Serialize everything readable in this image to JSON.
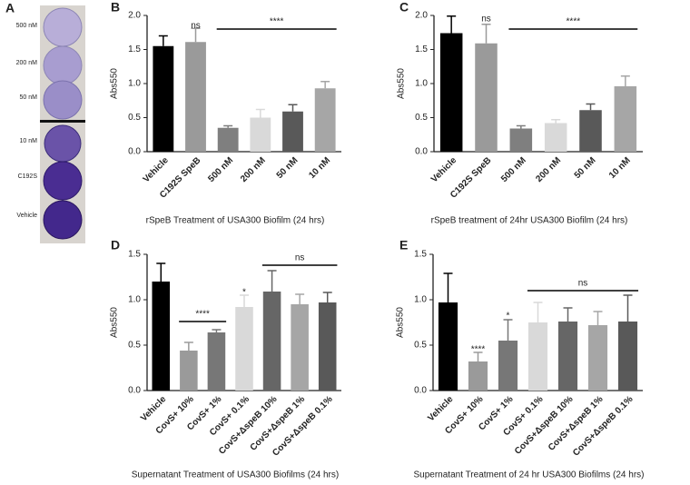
{
  "panel_a": {
    "label": "A",
    "well_labels": [
      "500 nM",
      "200 nM",
      "50 nM",
      "10 nM",
      "C192S",
      "Vehicle"
    ]
  },
  "chart_data": [
    {
      "type": "bar",
      "panel": "B",
      "title": "rSpeB Treatment of USA300 Biofilm (24 hrs)",
      "ylabel": "Abs550",
      "categories": [
        "Vehicle",
        "C192S SpeB",
        "500 nM",
        "200 nM",
        "50 nM",
        "10 nM"
      ],
      "values": [
        1.55,
        1.61,
        0.35,
        0.5,
        0.59,
        0.93
      ],
      "errors": [
        0.15,
        0.2,
        0.03,
        0.12,
        0.1,
        0.1
      ],
      "colors": [
        "#000000",
        "#9a9a9a",
        "#7f7f7f",
        "#d9d9d9",
        "#595959",
        "#a6a6a6"
      ],
      "ylim": [
        0,
        2
      ],
      "yticks": [
        {
          "value": 0,
          "label": "0.0"
        },
        0.5,
        {
          "value": 1,
          "label": "1.0"
        },
        1.5,
        {
          "value": 2,
          "label": "2.0"
        }
      ],
      "annotations": [
        {
          "text": "ns",
          "span": [
            1,
            1
          ],
          "y": 1.85
        },
        {
          "text": "****",
          "span": [
            2,
            5
          ],
          "y": 1.8
        }
      ]
    },
    {
      "type": "bar",
      "panel": "C",
      "title": "rSpeB treatment of 24hr USA300 Biofilm (24 hrs)",
      "ylabel": "Abs550",
      "categories": [
        "Vehicle",
        "C192S SpeB",
        "500 nM",
        "200 nM",
        "50 nM",
        "10 nM"
      ],
      "values": [
        1.74,
        1.59,
        0.34,
        0.42,
        0.61,
        0.96
      ],
      "errors": [
        0.25,
        0.28,
        0.04,
        0.05,
        0.09,
        0.15
      ],
      "colors": [
        "#000000",
        "#9a9a9a",
        "#7f7f7f",
        "#d9d9d9",
        "#595959",
        "#a6a6a6"
      ],
      "ylim": [
        0,
        2
      ],
      "yticks": [
        {
          "value": 0,
          "label": "0.0"
        },
        0.5,
        {
          "value": 1,
          "label": "1.0"
        },
        1.5,
        {
          "value": 2,
          "label": "2.0"
        }
      ],
      "annotations": [
        {
          "text": "ns",
          "span": [
            1,
            1
          ],
          "y": 1.95
        },
        {
          "text": "****",
          "span": [
            2,
            5
          ],
          "y": 1.8
        }
      ]
    },
    {
      "type": "bar",
      "panel": "D",
      "title": "Supernatant Treatment of USA300 Biofilms (24 hrs)",
      "ylabel": "Abs550",
      "categories": [
        "Vehicle",
        "CovS+ 10%",
        "CovS+ 1%",
        "CovS+ 0.1%",
        "CovS+ΔspeB 10%",
        "CovS+ΔspeB 1%",
        "CovS+ΔspeB 0.1%"
      ],
      "values": [
        1.2,
        0.44,
        0.64,
        0.92,
        1.09,
        0.95,
        0.97
      ],
      "errors": [
        0.2,
        0.09,
        0.03,
        0.13,
        0.23,
        0.11,
        0.11
      ],
      "colors": [
        "#000000",
        "#9a9a9a",
        "#777777",
        "#d9d9d9",
        "#666666",
        "#a6a6a6",
        "#595959"
      ],
      "ylim": [
        0,
        1.5
      ],
      "yticks": [
        {
          "value": 0,
          "label": "0.0"
        },
        0.5,
        {
          "value": 1,
          "label": "1.0"
        },
        1.5
      ],
      "annotations": [
        {
          "text": "****",
          "span": [
            1,
            2
          ],
          "y": 0.76
        },
        {
          "text": "*",
          "span": [
            3,
            3
          ],
          "y": 1.08
        },
        {
          "text": "ns",
          "span": [
            4,
            6
          ],
          "y": 1.38
        }
      ]
    },
    {
      "type": "bar",
      "panel": "E",
      "title": "Supernatant Treatment of 24 hr USA300 Biofilms (24 hrs)",
      "ylabel": "Abs550",
      "categories": [
        "Vehicle",
        "CovS+ 10%",
        "CovS+ 1%",
        "CovS+ 0.1%",
        "CovS+ΔspeB 10%",
        "CovS+ΔspeB 1%",
        "CovS+ΔspeB 0.1%"
      ],
      "values": [
        0.97,
        0.32,
        0.55,
        0.75,
        0.76,
        0.72,
        0.76
      ],
      "errors": [
        0.32,
        0.1,
        0.23,
        0.22,
        0.15,
        0.15,
        0.29
      ],
      "colors": [
        "#000000",
        "#9a9a9a",
        "#777777",
        "#d9d9d9",
        "#666666",
        "#a6a6a6",
        "#595959"
      ],
      "ylim": [
        0,
        1.5
      ],
      "yticks": [
        {
          "value": 0,
          "label": "0.0"
        },
        0.5,
        {
          "value": 1,
          "label": "1.0"
        },
        1.5
      ],
      "annotations": [
        {
          "text": "****",
          "span": [
            1,
            1
          ],
          "y": 0.45
        },
        {
          "text": "*",
          "span": [
            2,
            2
          ],
          "y": 0.82
        },
        {
          "text": "ns",
          "span": [
            3,
            6
          ],
          "y": 1.1
        }
      ]
    }
  ]
}
